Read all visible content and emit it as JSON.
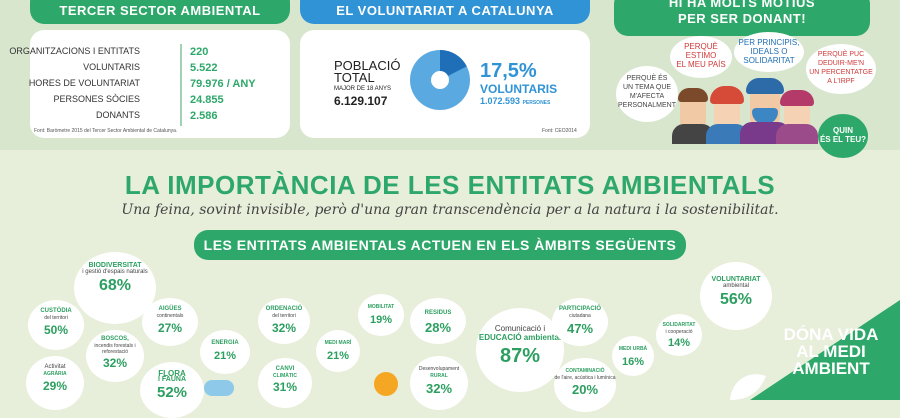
{
  "left_panel": {
    "header": "TERCER SECTOR AMBIENTAL",
    "rows": [
      {
        "label": "ORGANITZACIONS I ENTITATS",
        "value": "220"
      },
      {
        "label": "VOLUNTARIS",
        "value": "5.522"
      },
      {
        "label": "HORES DE VOLUNTARIAT",
        "value": "79.976 / ANY"
      },
      {
        "label": "PERSONES SÒCIES",
        "value": "24.855"
      },
      {
        "label": "DONANTS",
        "value": "2.586"
      }
    ],
    "source": "Font: Baròmetre 2015 del Tercer Sector Ambiental de Catalunya."
  },
  "middle_panel": {
    "header": "EL VOLUNTARIAT A CATALUNYA",
    "population_label_1": "POBLACIÓ",
    "population_label_2": "TOTAL",
    "population_sub": "MAJOR DE 18 ANYS",
    "population_value": "6.129.107",
    "percent": "17,5%",
    "volunteers_label": "VOLUNTARIS",
    "volunteers_value": "1.072.593",
    "volunteers_unit": "PERSONES",
    "source": "Font: CEO2014",
    "pie_fraction": 0.175,
    "colors": {
      "pie_main": "#5aa9e0",
      "pie_slice": "#1e6fb7"
    }
  },
  "right_panel": {
    "header_line1": "HI HA MOLTS MOTIUS",
    "header_line2": "PER SER DONANT!",
    "bubbles": [
      {
        "text_1": "PERQUÈ",
        "text_2": "ESTIMO",
        "text_3": "EL MEU PAÍS"
      },
      {
        "text_1": "PER PRINCIPIS,",
        "text_2": "IDEALS O",
        "text_3": "SOLIDARITAT"
      },
      {
        "text_1": "PERQUÈ PUC",
        "text_2": "DEDUIR-ME'N",
        "text_3": "UN PERCENTATGE",
        "text_4": "A L'IRPF"
      },
      {
        "text_1": "PERQUÈ ÉS",
        "text_2": "UN TEMA QUE",
        "text_3": "M'AFECTA",
        "text_4": "PERSONALMENT"
      }
    ],
    "question_1": "QUIN",
    "question_2": "ÉS EL TEU?"
  },
  "main": {
    "title": "LA IMPORTÀNCIA DE LES ENTITATS AMBIENTALS",
    "subtitle": "Una feina, sovint invisible, però d'una gran transcendència per a la natura i la sostenibilitat.",
    "section_banner": "LES ENTITATS AMBIENTALS ACTUEN EN ELS ÀMBITS SEGÜENTS",
    "areas": [
      {
        "name": "BIODIVERSITAT",
        "sub": "i gestió d'espais naturals",
        "pct": "68%"
      },
      {
        "name": "CUSTÒDIA",
        "sub": "del territori",
        "pct": "50%"
      },
      {
        "name": "AIGÜES",
        "sub": "continentals",
        "pct": "27%"
      },
      {
        "name": "BOSCOS,",
        "sub": "incendis forestals i reforestació",
        "pct": "32%"
      },
      {
        "name": "Activitat",
        "sub": "AGRÀRIA",
        "pct": "29%"
      },
      {
        "name": "FLORA",
        "sub": "I FAUNA",
        "pct": "52%"
      },
      {
        "name": "ENERGIA",
        "sub": "",
        "pct": "21%"
      },
      {
        "name": "ORDENACIÓ",
        "sub": "del territori",
        "pct": "32%"
      },
      {
        "name": "CANVI",
        "sub": "CLIMÀTIC",
        "pct": "31%"
      },
      {
        "name": "MEDI MARÍ",
        "sub": "",
        "pct": "21%"
      },
      {
        "name": "MOBILITAT",
        "sub": "",
        "pct": "19%"
      },
      {
        "name": "RESIDUS",
        "sub": "",
        "pct": "28%"
      },
      {
        "name": "Desenvolupament",
        "sub": "RURAL",
        "pct": "32%"
      },
      {
        "name": "Comunicació i",
        "sub": "EDUCACIÓ ambiental",
        "pct": "87%"
      },
      {
        "name": "PARTICIPACIÓ",
        "sub": "ciutadana",
        "pct": "47%"
      },
      {
        "name": "CONTAMINACIÓ",
        "sub": "de l'aire, acústica i lumínica",
        "pct": "20%"
      },
      {
        "name": "MEDI URBÀ",
        "sub": "",
        "pct": "16%"
      },
      {
        "name": "SOLIDARITAT",
        "sub": "i cooperació",
        "pct": "14%"
      },
      {
        "name": "VOLUNTARIAT",
        "sub": "ambiental",
        "pct": "56%"
      }
    ],
    "slogan_1": "DÓNA VIDA",
    "slogan_2": "AL MEDI",
    "slogan_3": "AMBIENT"
  },
  "colors": {
    "green": "#2ea86a",
    "blue": "#2f93d6",
    "background": "#e7eeda"
  }
}
